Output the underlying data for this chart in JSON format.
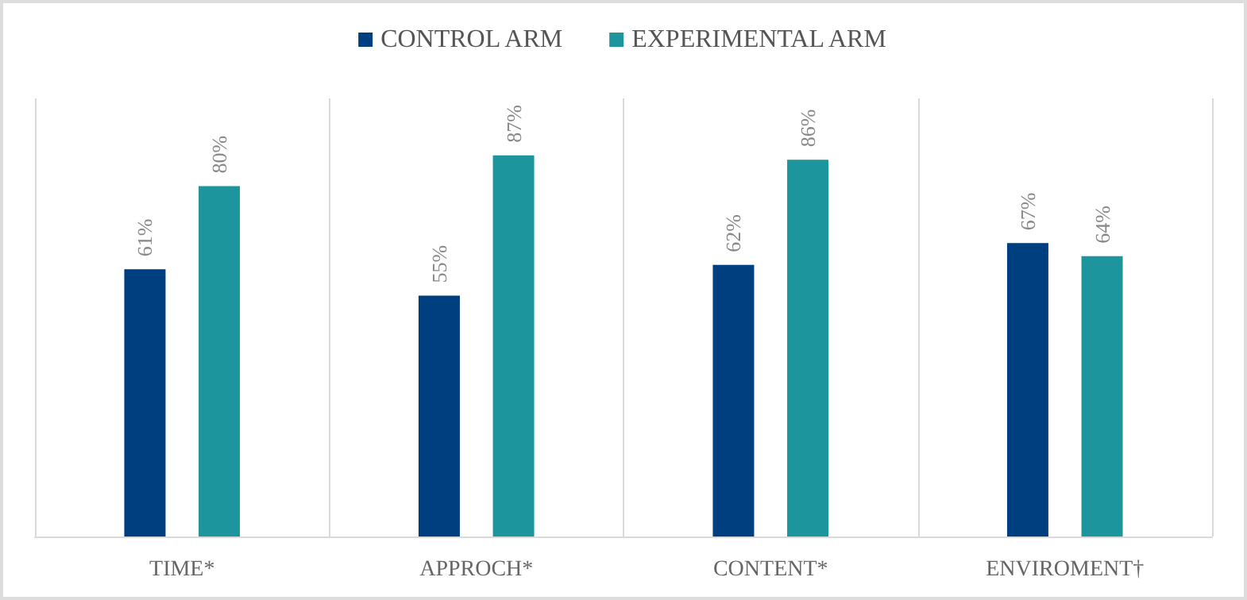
{
  "chart_data": {
    "type": "bar",
    "categories": [
      "TIME*",
      "APPROCH*",
      "CONTENT*",
      "ENVIROMENT†"
    ],
    "series": [
      {
        "name": "CONTROL ARM",
        "color": "#003f7f",
        "values": [
          61,
          55,
          62,
          67
        ],
        "value_labels": [
          "61%",
          "55%",
          "62%",
          "67%"
        ]
      },
      {
        "name": "EXPERIMENTAL ARM",
        "color": "#1c969c",
        "values": [
          80,
          87,
          86,
          64
        ],
        "value_labels": [
          "80%",
          "87%",
          "86%",
          "64%"
        ]
      }
    ],
    "grid": "x",
    "legend": "top"
  }
}
